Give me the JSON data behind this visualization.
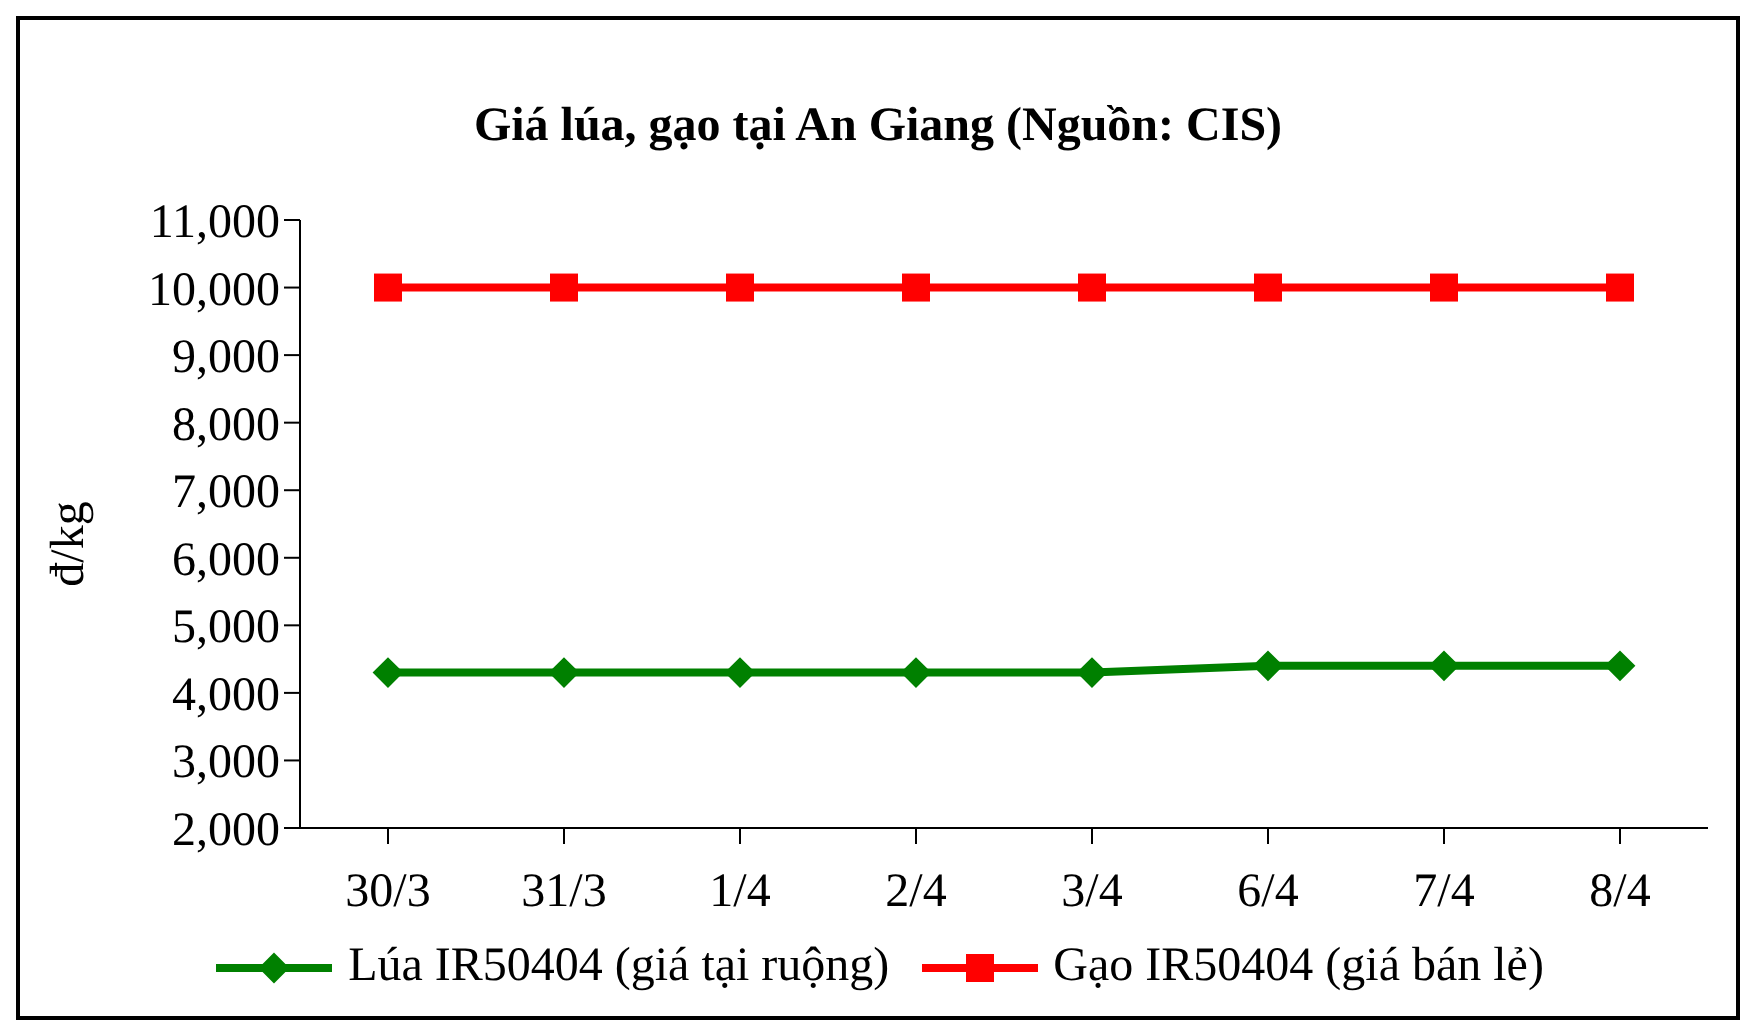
{
  "chart_data": {
    "type": "line",
    "title": "Giá lúa, gạo tại An Giang (Nguồn: CIS)",
    "ylabel": "đ/kg",
    "categories": [
      "30/3",
      "31/3",
      "1/4",
      "2/4",
      "3/4",
      "6/4",
      "7/4",
      "8/4"
    ],
    "series": [
      {
        "name": "Lúa IR50404 (giá tại ruộng)",
        "color": "#008000",
        "marker": "diamond",
        "values": [
          4300,
          4300,
          4300,
          4300,
          4300,
          4400,
          4400,
          4400
        ]
      },
      {
        "name": "Gạo IR50404 (giá bán lẻ)",
        "color": "#ff0000",
        "marker": "square",
        "values": [
          10000,
          10000,
          10000,
          10000,
          10000,
          10000,
          10000,
          10000
        ]
      }
    ],
    "ylim": [
      2000,
      11000
    ],
    "yticks": [
      {
        "value": 2000,
        "label": "2,000"
      },
      {
        "value": 3000,
        "label": "3,000"
      },
      {
        "value": 4000,
        "label": "4,000"
      },
      {
        "value": 5000,
        "label": "5,000"
      },
      {
        "value": 6000,
        "label": "6,000"
      },
      {
        "value": 7000,
        "label": "7,000"
      },
      {
        "value": 8000,
        "label": "8,000"
      },
      {
        "value": 9000,
        "label": "9,000"
      },
      {
        "value": 10000,
        "label": "10,000"
      },
      {
        "value": 11000,
        "label": "11,000"
      }
    ],
    "grid": false,
    "legend": "bottom"
  }
}
